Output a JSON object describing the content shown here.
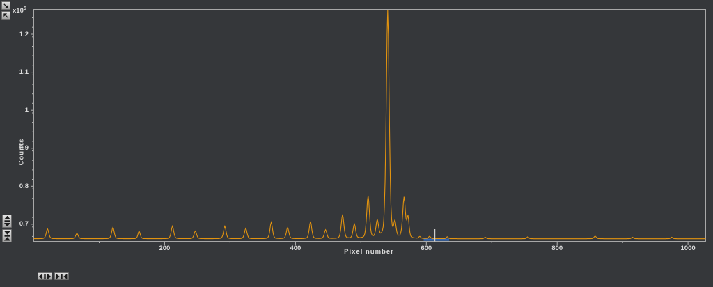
{
  "window": {
    "background": "#35373a",
    "axis_frame_color": "#a8a8a8",
    "tick_color": "#b5b5b5",
    "tick_label_color": "#dcdcdc"
  },
  "toolbar": {
    "top_left_buttons": [
      {
        "name": "corner-zoom-button",
        "icon": "arrow-southeast-icon"
      },
      {
        "name": "corner-reset-button",
        "icon": "arrow-northwest-icon"
      }
    ],
    "y_axis_buttons": [
      {
        "name": "y-zoom-out-button",
        "icon": "arrows-vertical-out-icon"
      },
      {
        "name": "y-zoom-in-button",
        "icon": "arrows-vertical-in-icon"
      }
    ],
    "x_axis_buttons": [
      {
        "name": "x-zoom-out-button",
        "icon": "arrows-horizontal-out-icon"
      },
      {
        "name": "x-zoom-in-button",
        "icon": "arrows-horizontal-in-icon"
      }
    ]
  },
  "chart_data": {
    "type": "line",
    "title": "",
    "xlabel": "Pixel number",
    "ylabel": "Counts",
    "y_multiplier": {
      "base": "x10",
      "exponent": "5"
    },
    "y_scale_factor": 100000,
    "xlim": [
      0,
      1027
    ],
    "ylim": [
      0.655,
      1.265
    ],
    "x_major_ticks": [
      200,
      400,
      600,
      800,
      1000
    ],
    "x_minor_ticks": [
      100,
      300,
      500,
      700,
      900
    ],
    "y_major_ticks": [
      0.7,
      0.8,
      0.9,
      1.0,
      1.1,
      1.2
    ],
    "y_tick_labels": [
      "0.7",
      "0.8",
      "0.9",
      "1",
      "1.1",
      "1.2"
    ],
    "y_minor_tick_step": 0.025,
    "grid": false,
    "legend": null,
    "line_color": "#e2930f",
    "baseline": 0.662,
    "peaks": [
      [
        21,
        0.688,
        2.0
      ],
      [
        66,
        0.676,
        2.0
      ],
      [
        121,
        0.692,
        2.0
      ],
      [
        161,
        0.682,
        1.8
      ],
      [
        212,
        0.695,
        2.0
      ],
      [
        247,
        0.682,
        2.0
      ],
      [
        292,
        0.695,
        2.0
      ],
      [
        324,
        0.689,
        2.0
      ],
      [
        363,
        0.705,
        2.0
      ],
      [
        388,
        0.691,
        2.0
      ],
      [
        423,
        0.707,
        2.0
      ],
      [
        446,
        0.685,
        2.0
      ],
      [
        472,
        0.725,
        2.1
      ],
      [
        490,
        0.7,
        2.0
      ],
      [
        511,
        0.773,
        2.2
      ],
      [
        525,
        0.707,
        2.0
      ],
      [
        541,
        1.262,
        2.4
      ],
      [
        552,
        0.7,
        1.8
      ],
      [
        566,
        0.768,
        2.2
      ],
      [
        572,
        0.716,
        1.7
      ],
      [
        590,
        0.667,
        1.5
      ],
      [
        605,
        0.668,
        1.5
      ],
      [
        632,
        0.667,
        1.5
      ],
      [
        690,
        0.666,
        1.5
      ],
      [
        755,
        0.667,
        1.5
      ],
      [
        858,
        0.669,
        1.8
      ],
      [
        915,
        0.666,
        1.5
      ],
      [
        975,
        0.666,
        1.5
      ]
    ],
    "selection": {
      "x_from": 596,
      "x_to": 635,
      "color": "#3566b0"
    },
    "cursor": {
      "x": 613,
      "top": 0.687,
      "color": "#cfcfcf"
    }
  }
}
